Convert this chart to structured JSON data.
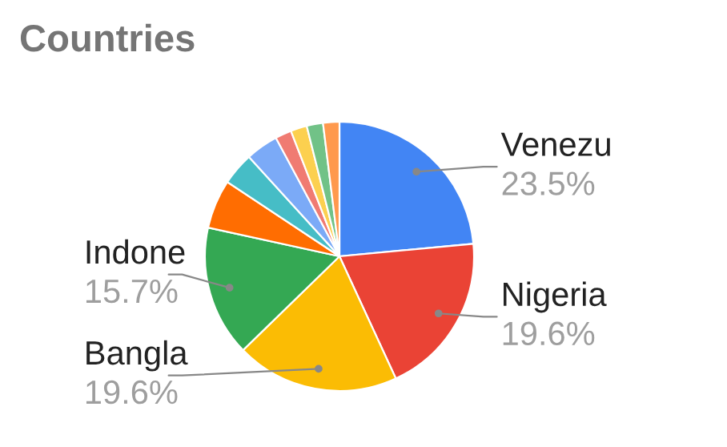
{
  "chart_data": {
    "type": "pie",
    "title": "Countries",
    "categories": [
      "Venezu",
      "Nigeria",
      "Bangla",
      "Indone",
      null,
      null,
      null,
      null,
      null,
      null,
      null
    ],
    "values": [
      23.5,
      19.6,
      19.6,
      15.7,
      5.88,
      3.92,
      3.92,
      1.96,
      1.96,
      1.96,
      1.96
    ],
    "value_labels": [
      "23.5%",
      "19.6%",
      "19.6%",
      "15.7%",
      null,
      null,
      null,
      null,
      null,
      null,
      null
    ],
    "colors": [
      "#4285f4",
      "#ea4335",
      "#fbbc04",
      "#34a853",
      "#ff6d01",
      "#46bdc6",
      "#7baaf7",
      "#f07b72",
      "#fcd04f",
      "#71c287",
      "#ff994d"
    ],
    "legend": false
  }
}
